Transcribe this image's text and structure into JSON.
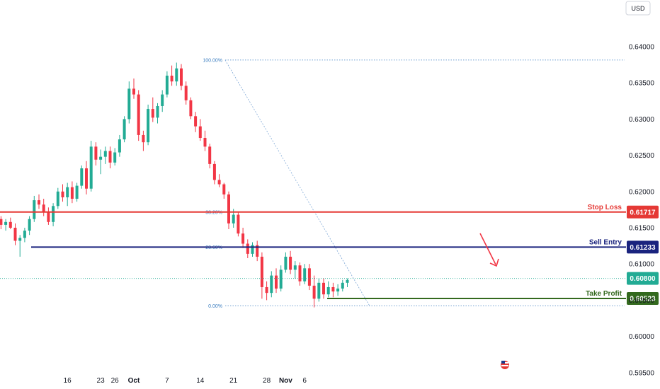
{
  "chart_data": {
    "type": "candlestick",
    "currency": "USD",
    "y_ticks": [
      "0.64000",
      "0.63500",
      "0.63000",
      "0.62500",
      "0.62000",
      "0.61500",
      "0.61000",
      "0.60500",
      "0.60000",
      "0.59500"
    ],
    "y_tick_values": [
      0.64,
      0.635,
      0.63,
      0.625,
      0.62,
      0.615,
      0.61,
      0.605,
      0.6,
      0.595
    ],
    "x_ticks": [
      "16",
      "23",
      "26",
      "Oct",
      "7",
      "14",
      "21",
      "28",
      "Nov",
      "6"
    ],
    "x_tick_index": [
      16,
      23,
      26,
      30,
      37,
      44,
      51,
      58,
      62,
      66
    ],
    "ohlc": [
      [
        0.616,
        0.6168,
        0.6152,
        0.6158
      ],
      [
        0.6158,
        0.6166,
        0.615,
        0.6162
      ],
      [
        0.6162,
        0.6166,
        0.6148,
        0.6154
      ],
      [
        0.6154,
        0.6162,
        0.6146,
        0.6158
      ],
      [
        0.6158,
        0.6164,
        0.6148,
        0.615
      ],
      [
        0.615,
        0.6156,
        0.6126,
        0.6132
      ],
      [
        0.6132,
        0.614,
        0.611,
        0.6136
      ],
      [
        0.6136,
        0.615,
        0.613,
        0.6146
      ],
      [
        0.6146,
        0.6166,
        0.614,
        0.6162
      ],
      [
        0.6162,
        0.6194,
        0.6158,
        0.6188
      ],
      [
        0.6188,
        0.6196,
        0.6176,
        0.6182
      ],
      [
        0.6182,
        0.619,
        0.6166,
        0.6172
      ],
      [
        0.6172,
        0.6178,
        0.6154,
        0.6158
      ],
      [
        0.6158,
        0.6184,
        0.6152,
        0.618
      ],
      [
        0.618,
        0.6205,
        0.6176,
        0.62
      ],
      [
        0.62,
        0.621,
        0.6186,
        0.6192
      ],
      [
        0.6192,
        0.6212,
        0.618,
        0.6206
      ],
      [
        0.6206,
        0.6214,
        0.6184,
        0.619
      ],
      [
        0.619,
        0.6212,
        0.6186,
        0.6208
      ],
      [
        0.6208,
        0.6236,
        0.6204,
        0.6232
      ],
      [
        0.6232,
        0.6242,
        0.6196,
        0.6204
      ],
      [
        0.6204,
        0.627,
        0.62,
        0.6262
      ],
      [
        0.6262,
        0.6268,
        0.6236,
        0.6244
      ],
      [
        0.6244,
        0.6258,
        0.6224,
        0.6248
      ],
      [
        0.6248,
        0.6262,
        0.6238,
        0.6256
      ],
      [
        0.6256,
        0.6262,
        0.6232,
        0.624
      ],
      [
        0.624,
        0.626,
        0.6236,
        0.6254
      ],
      [
        0.6254,
        0.6278,
        0.6248,
        0.6272
      ],
      [
        0.6272,
        0.6304,
        0.6268,
        0.63
      ],
      [
        0.63,
        0.6352,
        0.6294,
        0.6342
      ],
      [
        0.6342,
        0.6356,
        0.6328,
        0.6334
      ],
      [
        0.6334,
        0.634,
        0.627,
        0.6278
      ],
      [
        0.6278,
        0.6284,
        0.6256,
        0.6268
      ],
      [
        0.6268,
        0.632,
        0.6264,
        0.6314
      ],
      [
        0.6314,
        0.633,
        0.6296,
        0.6302
      ],
      [
        0.6302,
        0.6322,
        0.6294,
        0.6318
      ],
      [
        0.6318,
        0.634,
        0.631,
        0.6334
      ],
      [
        0.6334,
        0.6366,
        0.633,
        0.636
      ],
      [
        0.636,
        0.6374,
        0.6346,
        0.6352
      ],
      [
        0.6352,
        0.6378,
        0.6346,
        0.637
      ],
      [
        0.637,
        0.6376,
        0.634,
        0.6346
      ],
      [
        0.6346,
        0.6352,
        0.632,
        0.6326
      ],
      [
        0.6326,
        0.633,
        0.63,
        0.6304
      ],
      [
        0.6304,
        0.631,
        0.6282,
        0.629
      ],
      [
        0.629,
        0.63,
        0.627,
        0.6274
      ],
      [
        0.6274,
        0.6284,
        0.6256,
        0.6262
      ],
      [
        0.6262,
        0.6266,
        0.6232,
        0.6238
      ],
      [
        0.6238,
        0.6242,
        0.621,
        0.6216
      ],
      [
        0.6216,
        0.6224,
        0.6206,
        0.621
      ],
      [
        0.621,
        0.6212,
        0.619,
        0.6196
      ],
      [
        0.6196,
        0.62,
        0.6148,
        0.6156
      ],
      [
        0.6156,
        0.6176,
        0.615,
        0.6168
      ],
      [
        0.6168,
        0.6172,
        0.6138,
        0.6142
      ],
      [
        0.6142,
        0.615,
        0.6122,
        0.6128
      ],
      [
        0.6128,
        0.6134,
        0.6108,
        0.6114
      ],
      [
        0.6114,
        0.613,
        0.611,
        0.6126
      ],
      [
        0.6126,
        0.6132,
        0.6104,
        0.611
      ],
      [
        0.611,
        0.6116,
        0.6052,
        0.6068
      ],
      [
        0.6068,
        0.6076,
        0.605,
        0.606
      ],
      [
        0.606,
        0.609,
        0.6054,
        0.6084
      ],
      [
        0.6084,
        0.6094,
        0.606,
        0.6066
      ],
      [
        0.6066,
        0.6098,
        0.6062,
        0.6092
      ],
      [
        0.6092,
        0.6116,
        0.6088,
        0.611
      ],
      [
        0.611,
        0.6118,
        0.6086,
        0.6092
      ],
      [
        0.6092,
        0.6104,
        0.608,
        0.6098
      ],
      [
        0.6098,
        0.6102,
        0.607,
        0.6076
      ],
      [
        0.6076,
        0.61,
        0.6072,
        0.6094
      ],
      [
        0.6094,
        0.61,
        0.6064,
        0.607
      ],
      [
        0.607,
        0.6084,
        0.604,
        0.6052
      ],
      [
        0.6052,
        0.608,
        0.6048,
        0.6074
      ],
      [
        0.6074,
        0.608,
        0.6052,
        0.6058
      ],
      [
        0.6058,
        0.6076,
        0.6054,
        0.6068
      ],
      [
        0.6068,
        0.6074,
        0.6054,
        0.6062
      ],
      [
        0.6062,
        0.6072,
        0.6056,
        0.6066
      ],
      [
        0.6066,
        0.6078,
        0.6062,
        0.6074
      ],
      [
        0.6074,
        0.608,
        0.6068,
        0.6078
      ]
    ],
    "fib_levels": [
      {
        "label": "100.00%",
        "value": 0.63816
      },
      {
        "label": "38.20%",
        "value": 0.61717
      },
      {
        "label": "23.60%",
        "value": 0.61233
      },
      {
        "label": "0.00%",
        "value": 0.6042
      }
    ],
    "levels": [
      {
        "name": "Stop Loss",
        "value": "0.61717",
        "price": 0.61717,
        "color": "#e53935"
      },
      {
        "name": "Sell Entry",
        "value": "0.61233",
        "price": 0.61233,
        "color": "#1a237e"
      },
      {
        "name": "Take Profit",
        "value": "0.60523",
        "price": 0.60523,
        "color": "#33691e"
      }
    ],
    "current_price": {
      "value": "0.60800",
      "price": 0.608,
      "color": "#22ab94"
    },
    "colors": {
      "up": "#22ab94",
      "down": "#f23645",
      "fib": "#3d7fc1"
    }
  }
}
